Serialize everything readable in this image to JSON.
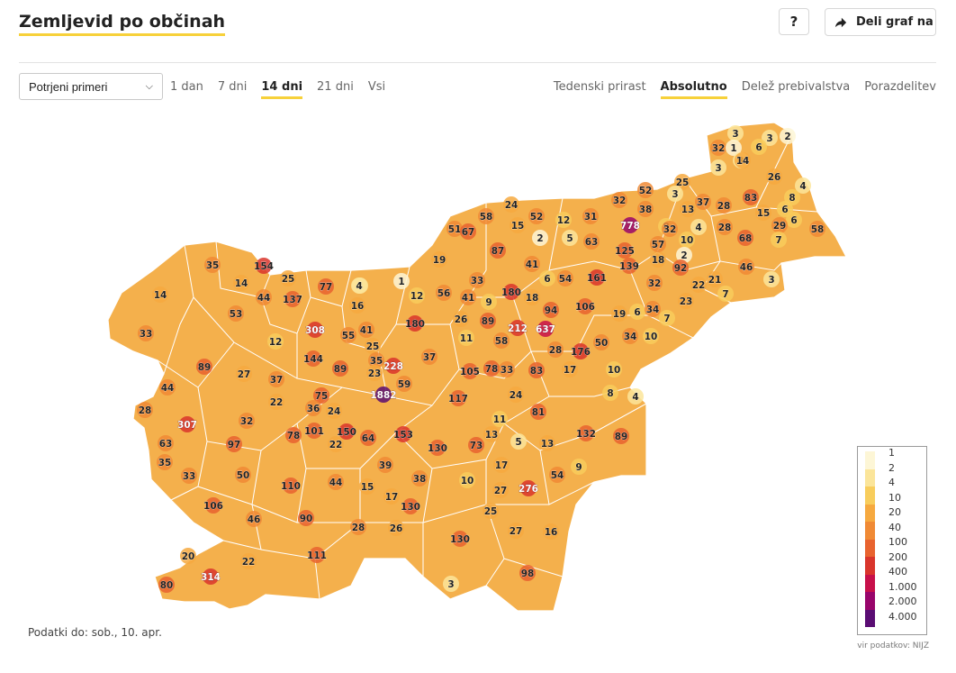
{
  "header": {
    "title": "Zemljevid po občinah",
    "help_label": "?",
    "share_label": "Deli graf na"
  },
  "controls": {
    "select_value": "Potrjeni primeri",
    "time_tabs": [
      {
        "label": "1 dan",
        "active": false
      },
      {
        "label": "7 dni",
        "active": false
      },
      {
        "label": "14 dni",
        "active": true
      },
      {
        "label": "21 dni",
        "active": false
      },
      {
        "label": "Vsi",
        "active": false
      }
    ],
    "mode_tabs": [
      {
        "label": "Tedenski prirast",
        "active": false
      },
      {
        "label": "Absolutno",
        "active": true
      },
      {
        "label": "Delež prebivalstva",
        "active": false
      },
      {
        "label": "Porazdelitev",
        "active": false
      }
    ]
  },
  "map": {
    "values": [
      3,
      3,
      2,
      32,
      1,
      6,
      3,
      14,
      3,
      26,
      25,
      52,
      4,
      8,
      32,
      37,
      28,
      83,
      15,
      6,
      6,
      29,
      58,
      24,
      52,
      12,
      31,
      778,
      38,
      13,
      3,
      8,
      4,
      51,
      67,
      58,
      15,
      2,
      5,
      63,
      125,
      32,
      10,
      28,
      68,
      7,
      87,
      41,
      139,
      18,
      57,
      2,
      92,
      46,
      19,
      6,
      54,
      161,
      22,
      21,
      7,
      3,
      1,
      33,
      180,
      18,
      94,
      106,
      32,
      4,
      23,
      12,
      56,
      41,
      9,
      26,
      89,
      637,
      19,
      6,
      34,
      7,
      154,
      25,
      77,
      35,
      14,
      44,
      137,
      53,
      4,
      16,
      180,
      212,
      11,
      58,
      28,
      50,
      34,
      10,
      308,
      55,
      41,
      25,
      176,
      14,
      33,
      12,
      144,
      35,
      228,
      37,
      89,
      27,
      23,
      59,
      105,
      78,
      33,
      83,
      17,
      10,
      89,
      44,
      37,
      1882,
      117,
      8,
      4,
      24,
      75,
      22,
      28,
      36,
      24,
      81,
      307,
      32,
      11,
      13,
      132,
      89,
      78,
      101,
      22,
      150,
      64,
      153,
      130,
      73,
      5,
      13,
      63,
      97,
      35,
      50,
      33,
      39,
      17,
      9,
      54,
      110,
      44,
      15,
      38,
      10,
      27,
      276,
      17,
      130,
      106,
      46,
      90,
      25,
      28,
      26,
      27,
      16,
      130,
      111,
      20,
      22,
      314,
      80,
      98,
      3
    ],
    "color_stops": [
      "#fdf6d6",
      "#fbe59a",
      "#f8cd5c",
      "#f6a93f",
      "#f08a35",
      "#e8632f",
      "#d9352c",
      "#c7104a",
      "#98056b",
      "#5a0d73"
    ]
  },
  "legend": {
    "ticks": [
      "1",
      "2",
      "4",
      "10",
      "20",
      "40",
      "100",
      "200",
      "400",
      "1.000",
      "2.000",
      "4.000"
    ]
  },
  "footer": {
    "date_text": "Podatki do: sob., 10. apr.",
    "source_text": "vir podatkov: NIJZ"
  }
}
